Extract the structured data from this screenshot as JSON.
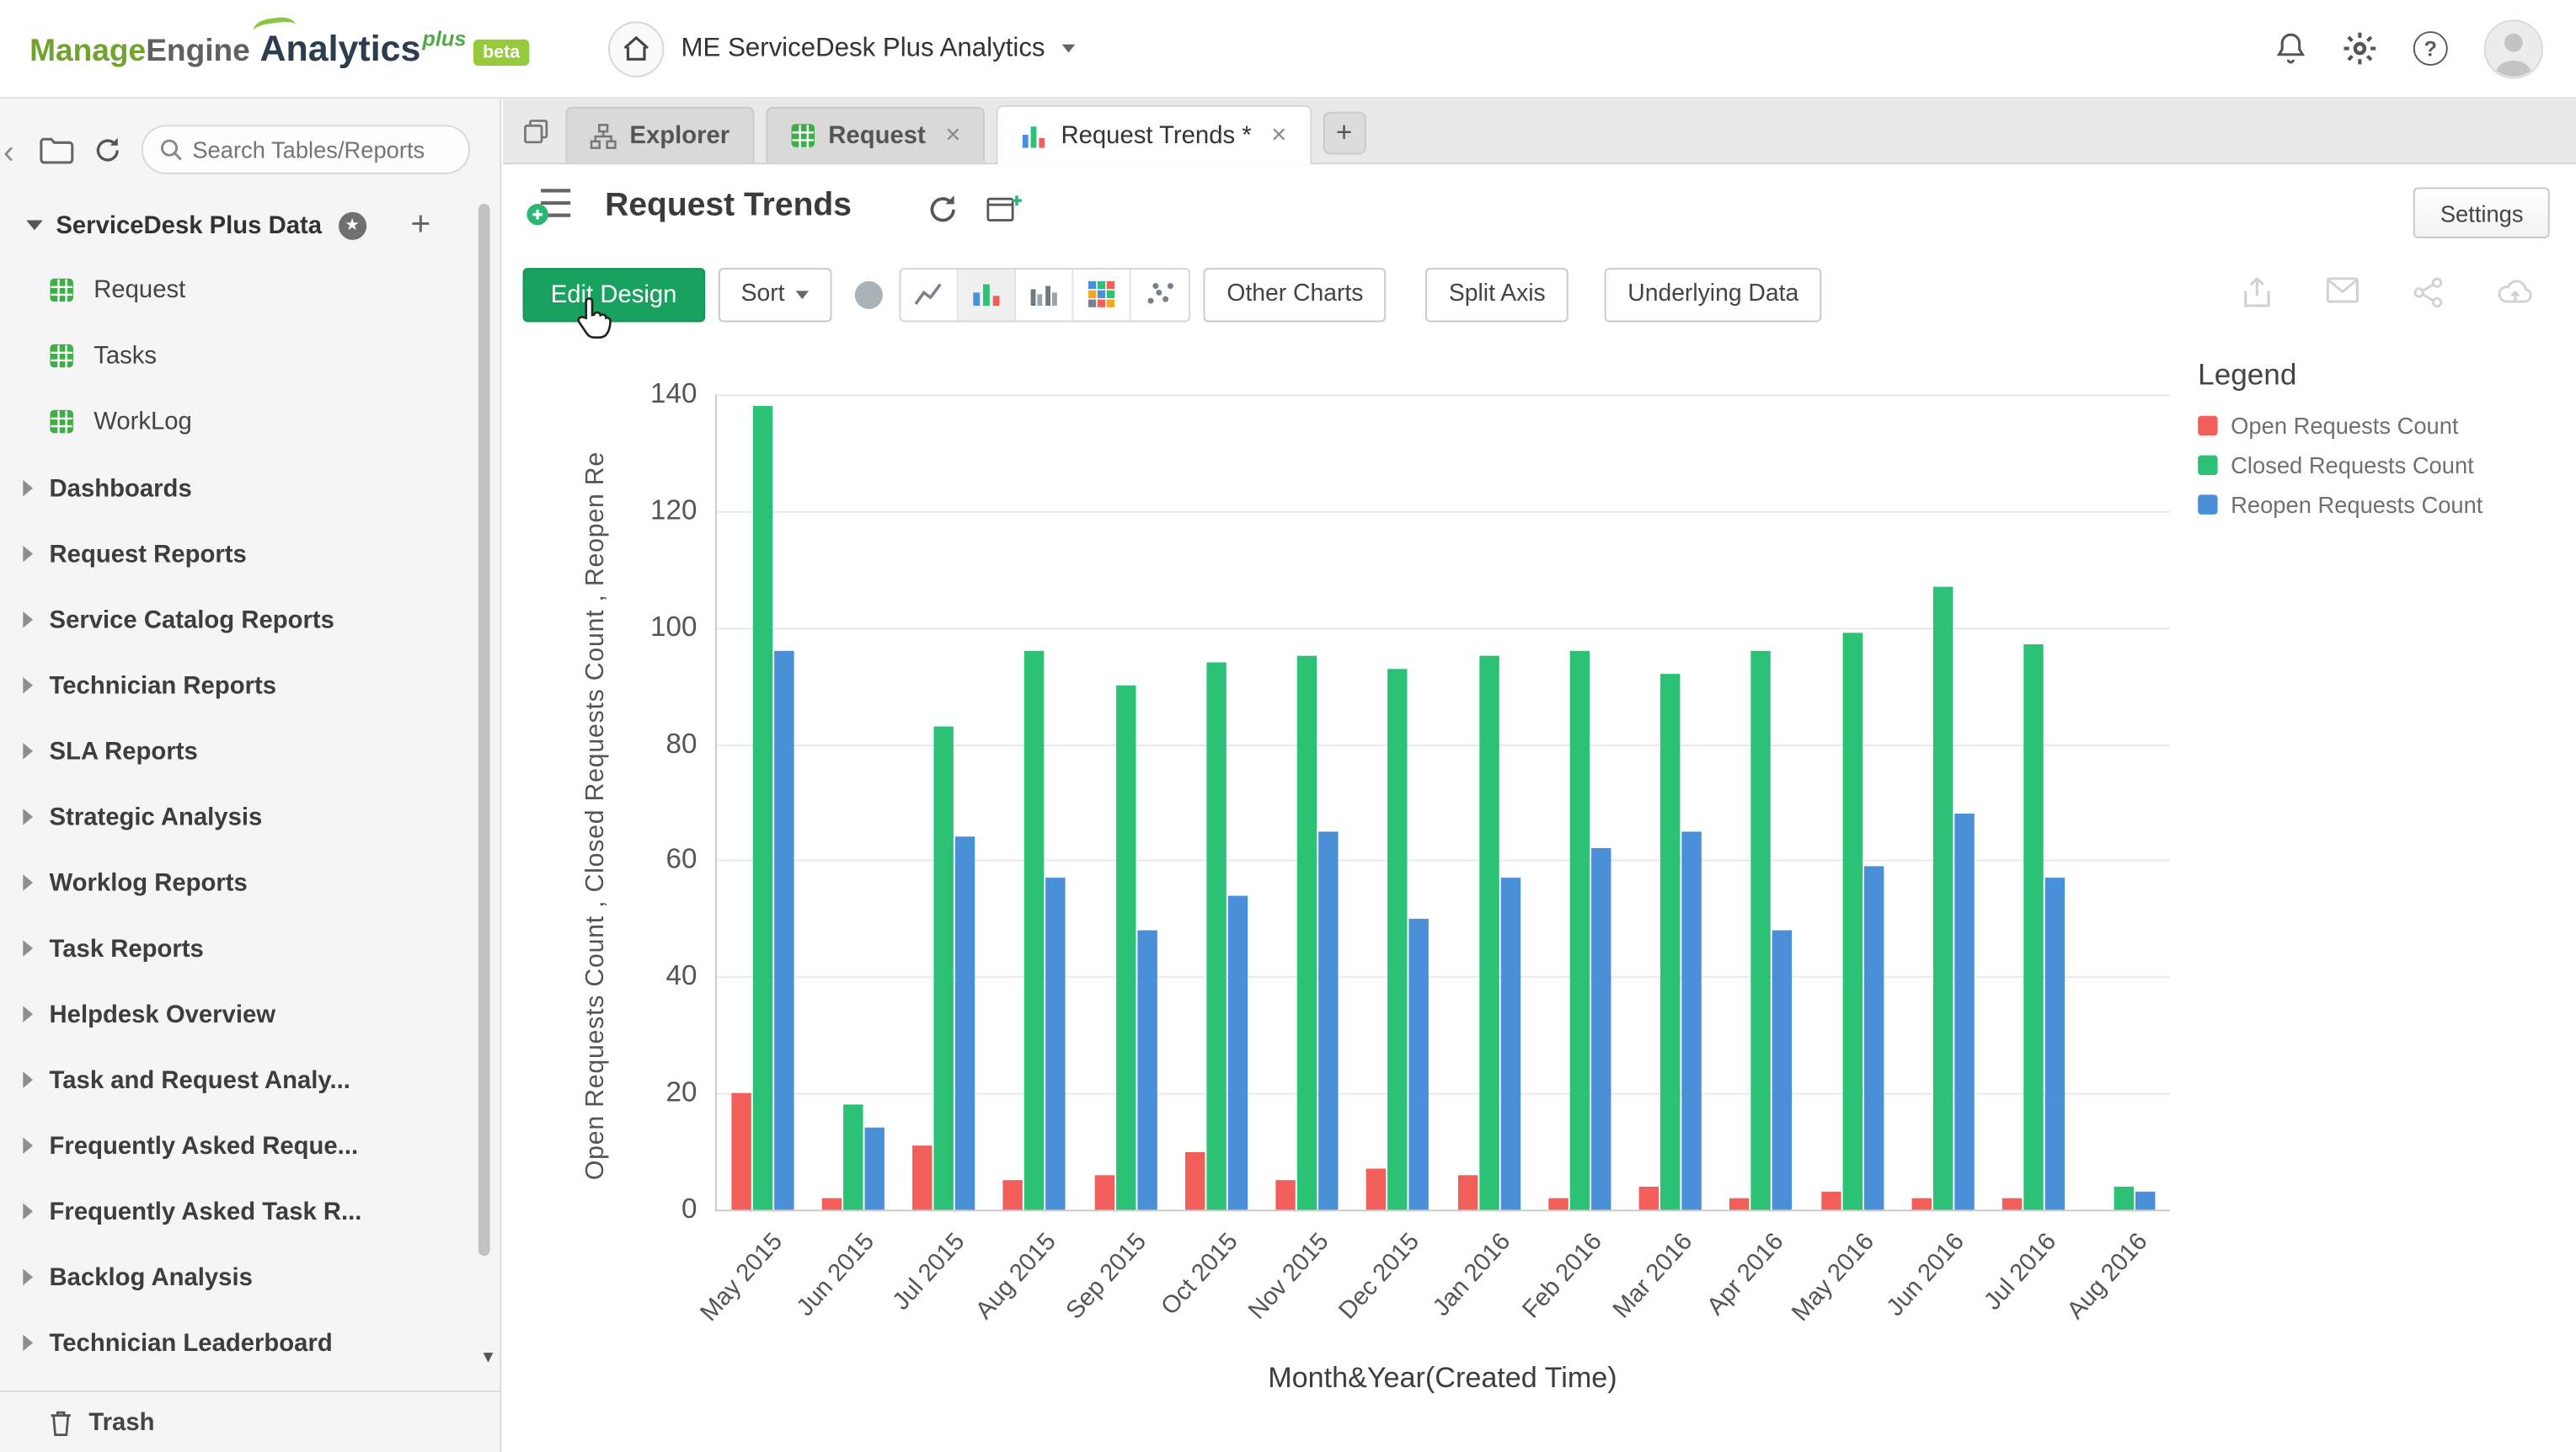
{
  "header": {
    "logo": {
      "part1": "Manage",
      "part2": "Engine",
      "product": "Analytics",
      "plus": "plus",
      "beta": "beta"
    },
    "workspace": "ME ServiceDesk Plus Analytics"
  },
  "icons": {
    "close": "×",
    "add": "+",
    "collapse": "‹",
    "scroll_down": "▾",
    "help": "?",
    "star": "★"
  },
  "sidebar": {
    "search_placeholder": "Search Tables/Reports",
    "root": "ServiceDesk Plus Data",
    "tables": [
      "Request",
      "Tasks",
      "WorkLog"
    ],
    "folders": [
      "Dashboards",
      "Request Reports",
      "Service Catalog Reports",
      "Technician Reports",
      "SLA Reports",
      "Strategic Analysis",
      "Worklog Reports",
      "Task Reports",
      "Helpdesk Overview",
      "Task and Request Analy...",
      "Frequently Asked Reque...",
      "Frequently Asked Task R...",
      "Backlog Analysis",
      "Technician Leaderboard"
    ],
    "trash": "Trash"
  },
  "tabs": [
    {
      "label": "Explorer",
      "active": false
    },
    {
      "label": "Request",
      "active": false
    },
    {
      "label": "Request Trends *",
      "active": true
    }
  ],
  "view": {
    "title": "Request Trends",
    "settings_label": "Settings"
  },
  "toolbar": {
    "edit_design": "Edit Design",
    "sort": "Sort",
    "other_charts": "Other Charts",
    "split_axis": "Split Axis",
    "underlying_data": "Underlying Data"
  },
  "chart_data": {
    "type": "bar",
    "title": "Request Trends",
    "xlabel": "Month&Year(Created Time)",
    "ylabel": "Open Requests Count , Closed Requests Count , Reopen Re",
    "legend_title": "Legend",
    "legend_position": "right-top",
    "grid": true,
    "ylim": [
      0,
      140
    ],
    "yticks": [
      0,
      20,
      40,
      60,
      80,
      100,
      120,
      140
    ],
    "categories": [
      "May 2015",
      "Jun 2015",
      "Jul 2015",
      "Aug 2015",
      "Sep 2015",
      "Oct 2015",
      "Nov 2015",
      "Dec 2015",
      "Jan 2016",
      "Feb 2016",
      "Mar 2016",
      "Apr 2016",
      "May 2016",
      "Jun 2016",
      "Jul 2016",
      "Aug 2016"
    ],
    "series": [
      {
        "name": "Open Requests Count",
        "color": "#f25f5a",
        "values": [
          20,
          2,
          11,
          5,
          6,
          10,
          5,
          7,
          6,
          2,
          4,
          2,
          3,
          2,
          2,
          0
        ]
      },
      {
        "name": "Closed Requests Count",
        "color": "#2bc275",
        "values": [
          138,
          18,
          83,
          96,
          90,
          94,
          95,
          93,
          95,
          96,
          92,
          96,
          99,
          107,
          97,
          4
        ]
      },
      {
        "name": "Reopen Requests Count",
        "color": "#4a90d9",
        "values": [
          96,
          14,
          64,
          57,
          48,
          54,
          65,
          50,
          57,
          62,
          65,
          48,
          59,
          68,
          57,
          3
        ]
      }
    ]
  }
}
